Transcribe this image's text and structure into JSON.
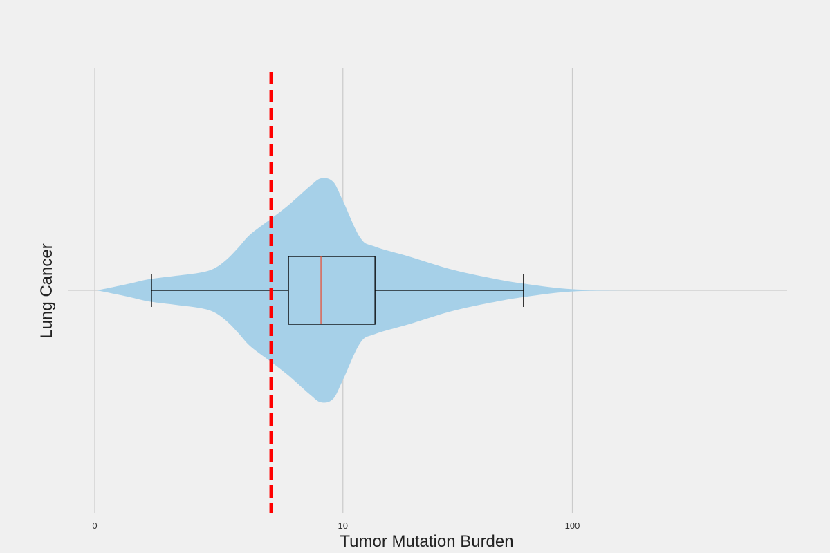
{
  "chart_data": {
    "type": "violin",
    "orientation": "horizontal",
    "xscale": "symlog",
    "xlabel": "Tumor Mutation Burden",
    "ylabel": "Lung Cancer",
    "category": "Lung Cancer",
    "xticks": [
      {
        "value": 0,
        "label": "0"
      },
      {
        "value": 10,
        "label": "10"
      },
      {
        "value": 100,
        "label": "100"
      }
    ],
    "xlim": [
      -0.3,
      850
    ],
    "grid": true,
    "colors": {
      "background": "#f0f0f0",
      "grid": "#cbcbcb",
      "violin": "#a6d0e8",
      "box": "#000000",
      "median": "#e5533b",
      "threshold": "#ff0000"
    },
    "threshold": 4.5,
    "box": {
      "whisker_low": 0.73,
      "q1": 5.5,
      "median": 7.9,
      "q3": 14.0,
      "whisker_high": 62
    },
    "density_profile": [
      {
        "x": 0.02,
        "width": 0.0
      },
      {
        "x": 0.2,
        "width": 0.03
      },
      {
        "x": 0.4,
        "width": 0.06
      },
      {
        "x": 0.7,
        "width": 0.1
      },
      {
        "x": 1.2,
        "width": 0.13
      },
      {
        "x": 1.8,
        "width": 0.16
      },
      {
        "x": 2.2,
        "width": 0.2
      },
      {
        "x": 2.6,
        "width": 0.28
      },
      {
        "x": 3.0,
        "width": 0.38
      },
      {
        "x": 3.5,
        "width": 0.5
      },
      {
        "x": 4.5,
        "width": 0.64
      },
      {
        "x": 5.5,
        "width": 0.76
      },
      {
        "x": 7.0,
        "width": 0.93
      },
      {
        "x": 7.9,
        "width": 1.0
      },
      {
        "x": 9.0,
        "width": 0.97
      },
      {
        "x": 10.0,
        "width": 0.8
      },
      {
        "x": 12.0,
        "width": 0.47
      },
      {
        "x": 14.0,
        "width": 0.39
      },
      {
        "x": 20.0,
        "width": 0.3
      },
      {
        "x": 30.0,
        "width": 0.19
      },
      {
        "x": 45.0,
        "width": 0.11
      },
      {
        "x": 62.0,
        "width": 0.06
      },
      {
        "x": 100.0,
        "width": 0.01
      },
      {
        "x": 180.0,
        "width": 0.0
      }
    ]
  }
}
